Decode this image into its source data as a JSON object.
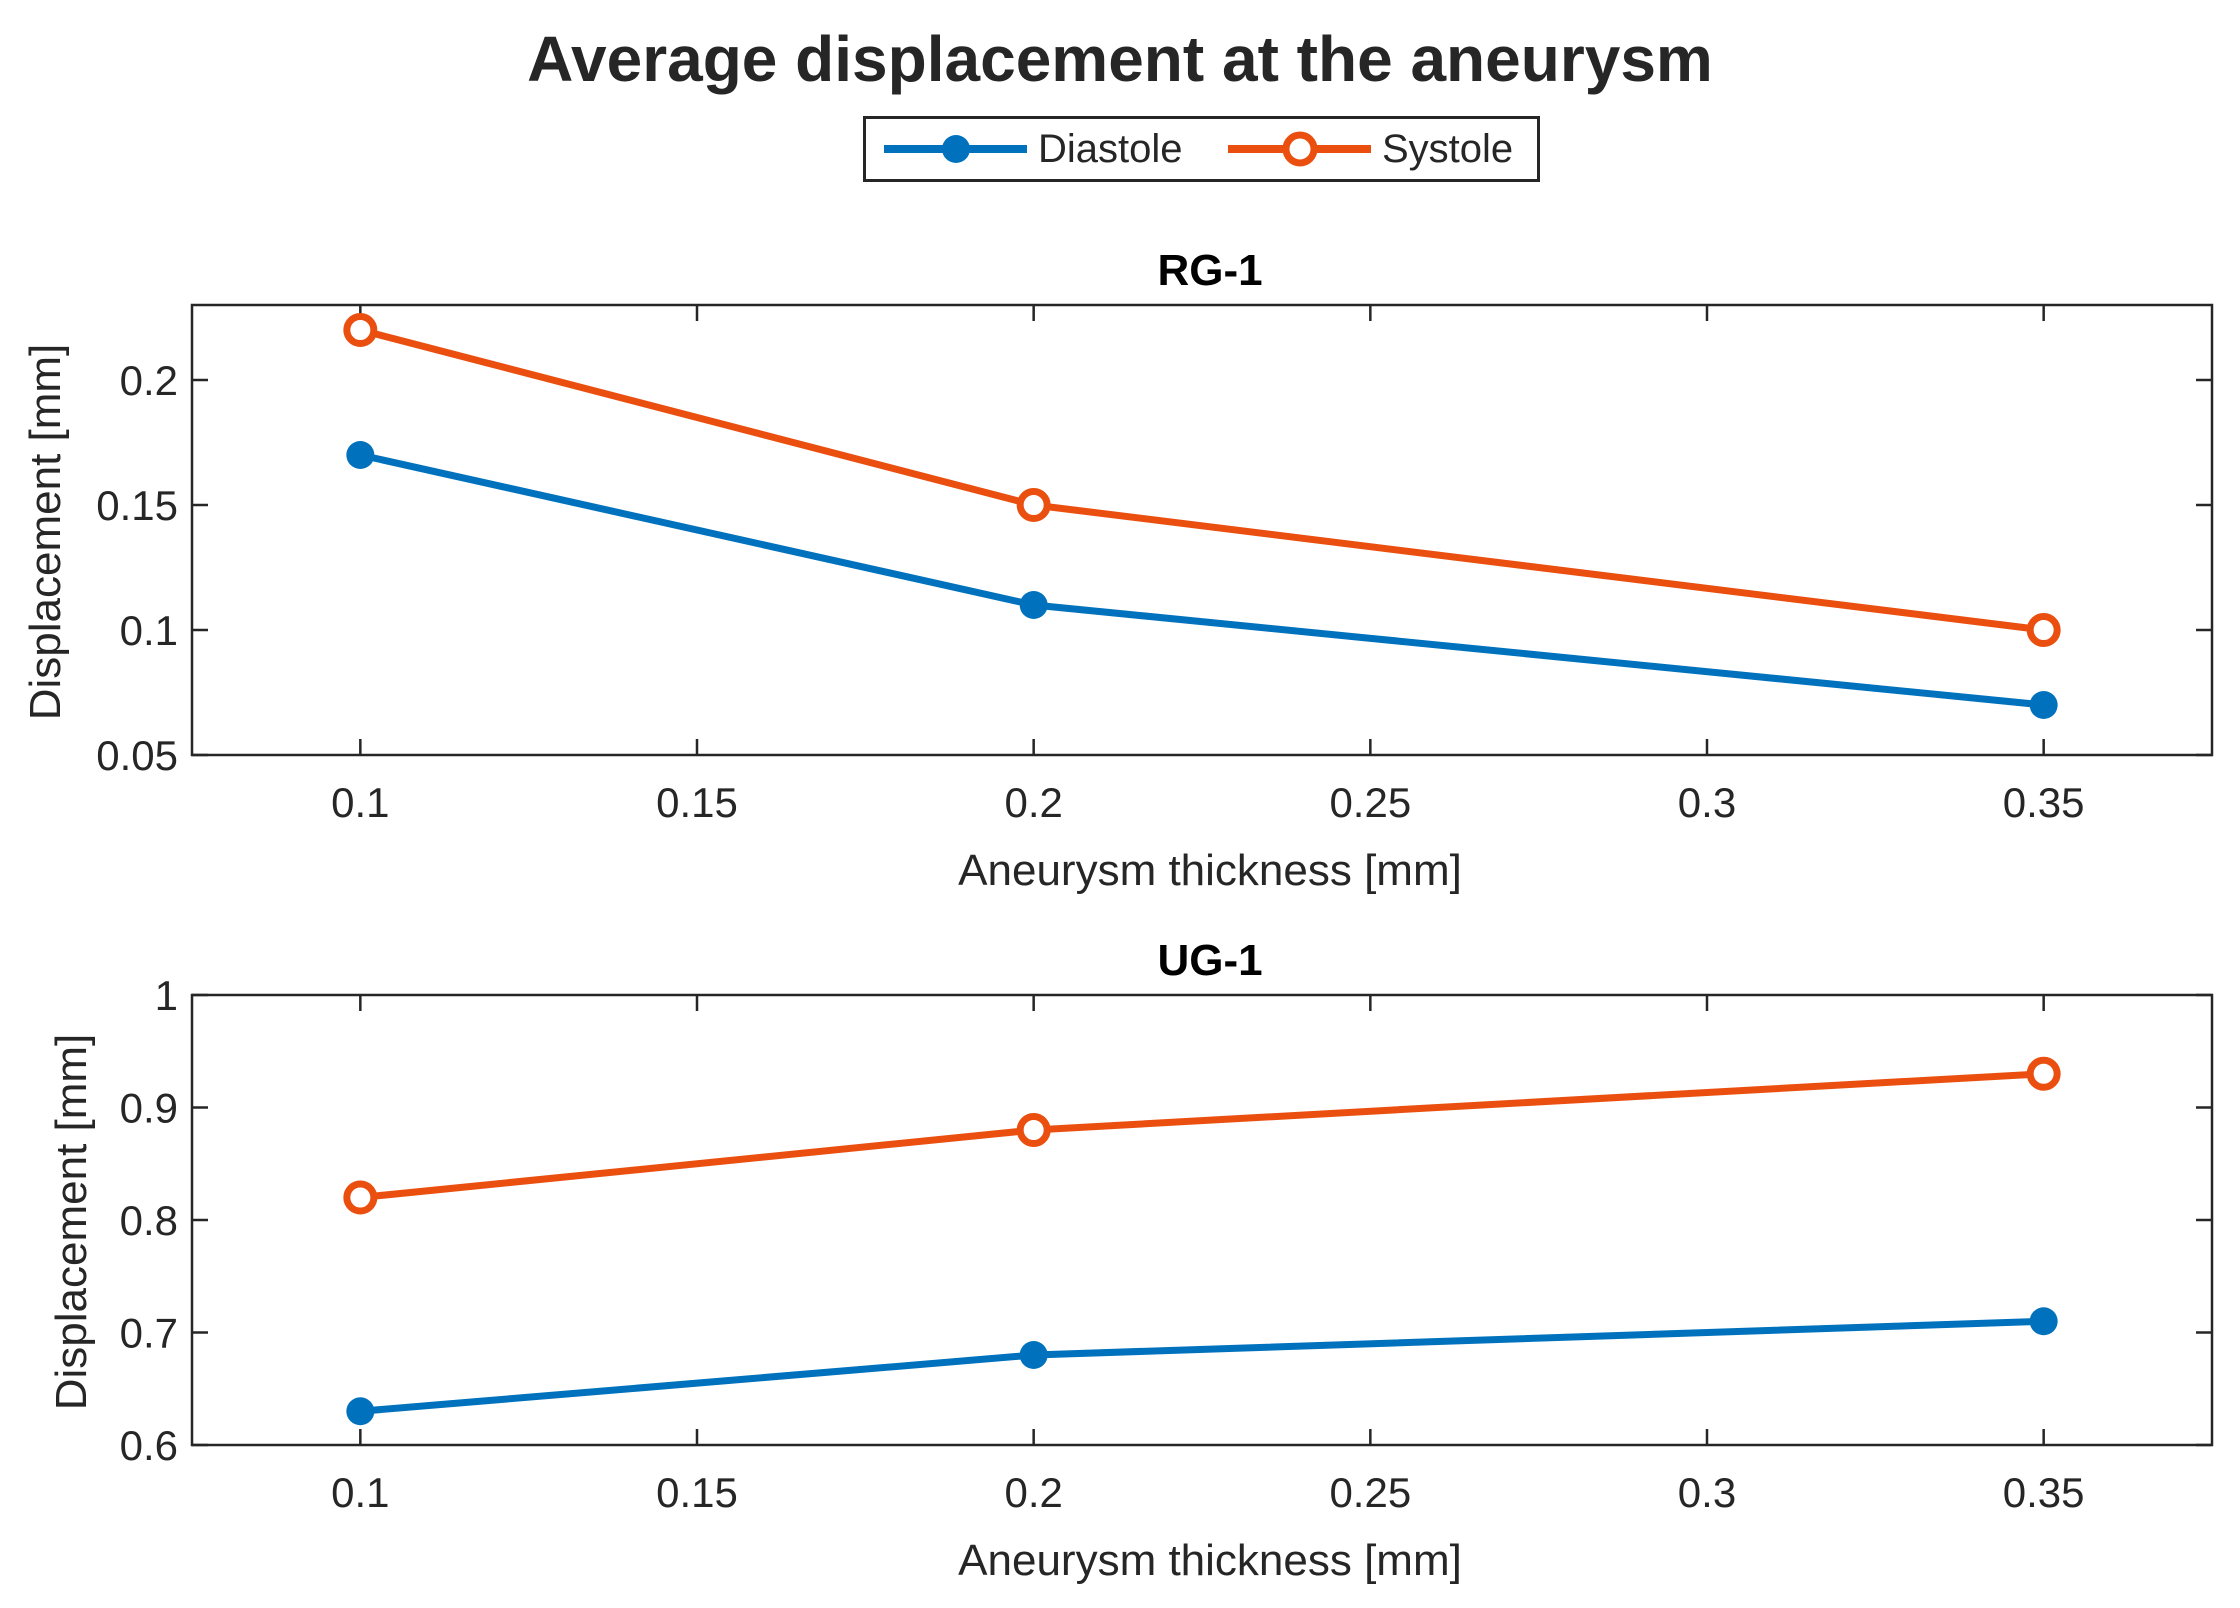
{
  "title": "Average displacement at the aneurysm",
  "legend": {
    "diastole": "Diastole",
    "systole": "Systole"
  },
  "colors": {
    "diastole": "#0072BD",
    "systole": "#EA4F10",
    "axis": "#262626"
  },
  "chart_data": [
    {
      "type": "line",
      "title": "RG-1",
      "xlabel": "Aneurysm thickness [mm]",
      "ylabel": "Displacement [mm]",
      "xlim": [
        0.075,
        0.375
      ],
      "ylim": [
        0.05,
        0.23
      ],
      "xticks": [
        0.1,
        0.15,
        0.2,
        0.25,
        0.3,
        0.35
      ],
      "xtick_labels": [
        "0.1",
        "0.15",
        "0.2",
        "0.25",
        "0.3",
        "0.35"
      ],
      "yticks": [
        0.05,
        0.1,
        0.15,
        0.2
      ],
      "ytick_labels": [
        "0.05",
        "0.1",
        "0.15",
        "0.2"
      ],
      "x": [
        0.1,
        0.2,
        0.35
      ],
      "series": [
        {
          "name": "Diastole",
          "values": [
            0.17,
            0.11,
            0.07
          ]
        },
        {
          "name": "Systole",
          "values": [
            0.22,
            0.15,
            0.1
          ]
        }
      ]
    },
    {
      "type": "line",
      "title": "UG-1",
      "xlabel": "Aneurysm thickness [mm]",
      "ylabel": "Displacement [mm]",
      "xlim": [
        0.075,
        0.375
      ],
      "ylim": [
        0.6,
        1.0
      ],
      "xticks": [
        0.1,
        0.15,
        0.2,
        0.25,
        0.3,
        0.35
      ],
      "xtick_labels": [
        "0.1",
        "0.15",
        "0.2",
        "0.25",
        "0.3",
        "0.35"
      ],
      "yticks": [
        0.6,
        0.7,
        0.8,
        0.9,
        1.0
      ],
      "ytick_labels": [
        "0.6",
        "0.7",
        "0.8",
        "0.9",
        "1"
      ],
      "x": [
        0.1,
        0.2,
        0.35
      ],
      "series": [
        {
          "name": "Diastole",
          "values": [
            0.63,
            0.68,
            0.71
          ]
        },
        {
          "name": "Systole",
          "values": [
            0.82,
            0.88,
            0.93
          ]
        }
      ]
    }
  ]
}
